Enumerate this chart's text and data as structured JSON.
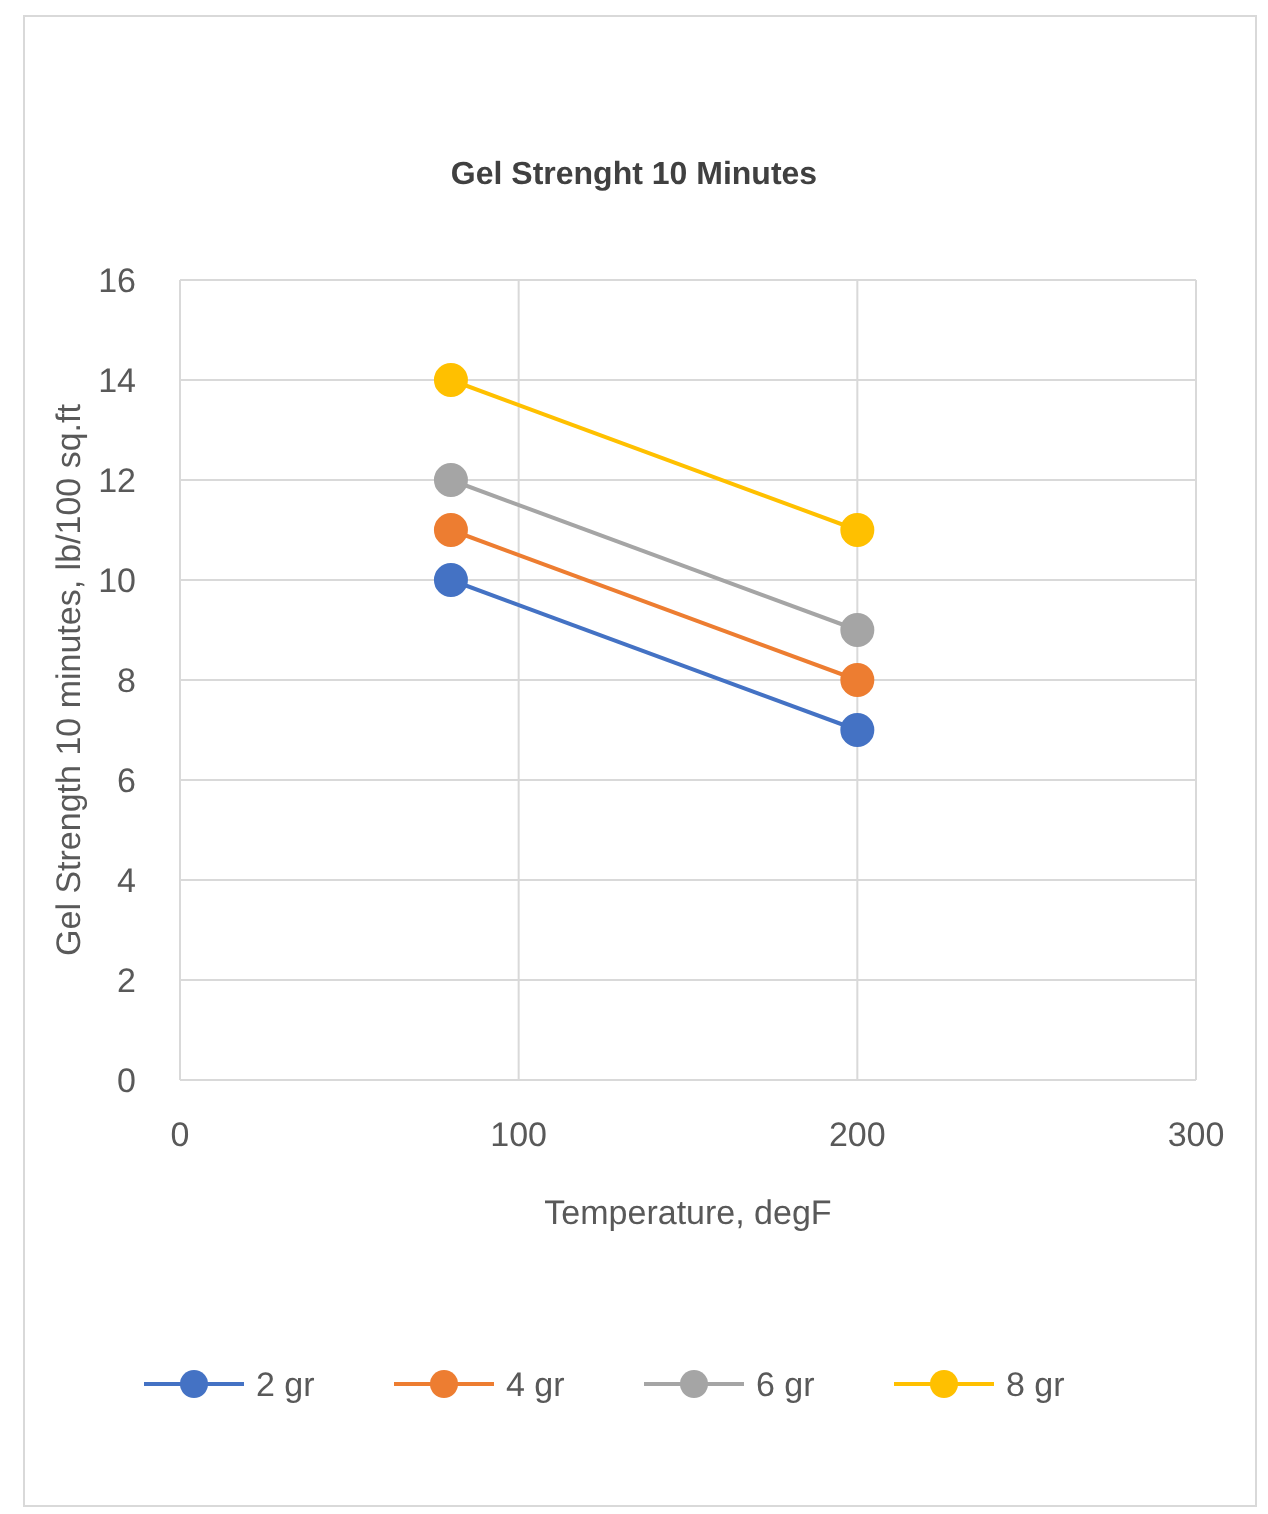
{
  "chart_data": {
    "type": "line",
    "title": "Gel Strenght 10 Minutes",
    "xlabel": "Temperature, degF",
    "ylabel": "Gel Strength 10 minutes, lb/100 sq.ft",
    "x": [
      80,
      200
    ],
    "series": [
      {
        "name": "2 gr",
        "color": "#4472c4",
        "values": [
          10,
          7
        ]
      },
      {
        "name": "4 gr",
        "color": "#ed7d31",
        "values": [
          11,
          8
        ]
      },
      {
        "name": "6 gr",
        "color": "#a5a5a5",
        "values": [
          12,
          9
        ]
      },
      {
        "name": "8 gr",
        "color": "#ffc000",
        "values": [
          14,
          11
        ]
      }
    ],
    "xlim": [
      0,
      300
    ],
    "xticks": [
      0,
      100,
      200,
      300
    ],
    "ylim": [
      0,
      16
    ],
    "yticks": [
      0,
      2,
      4,
      6,
      8,
      10,
      12,
      14,
      16
    ],
    "grid": true,
    "legend": "bottom",
    "marker": "circle",
    "line_style": "solid"
  }
}
